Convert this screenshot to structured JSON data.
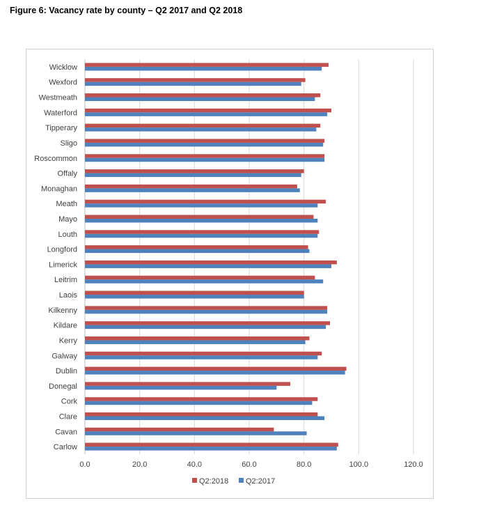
{
  "figure_title": "Figure 6: Vacancy rate by county – Q2 2017 and Q2 2018",
  "chart_data": {
    "type": "bar",
    "orientation": "horizontal",
    "categories": [
      "Wicklow",
      "Wexford",
      "Westmeath",
      "Waterford",
      "Tipperary",
      "Sligo",
      "Roscommon",
      "Offaly",
      "Monaghan",
      "Meath",
      "Mayo",
      "Louth",
      "Longford",
      "Limerick",
      "Leitrim",
      "Laois",
      "Kilkenny",
      "Kildare",
      "Kerry",
      "Galway",
      "Dublin",
      "Donegal",
      "Cork",
      "Clare",
      "Cavan",
      "Carlow"
    ],
    "series": [
      {
        "name": "Q2:2018",
        "color": "#c0504d",
        "values": [
          89.0,
          80.5,
          86.0,
          90.0,
          86.0,
          87.5,
          87.5,
          80.0,
          77.5,
          88.0,
          83.5,
          85.5,
          81.5,
          92.0,
          84.0,
          80.0,
          88.5,
          89.5,
          82.0,
          86.5,
          95.5,
          75.0,
          85.0,
          85.0,
          69.0,
          92.5
        ]
      },
      {
        "name": "Q2:2017",
        "color": "#4f81bd",
        "values": [
          86.5,
          79.0,
          84.0,
          88.5,
          84.5,
          87.0,
          87.5,
          79.0,
          78.5,
          85.0,
          85.0,
          85.0,
          82.0,
          90.0,
          87.0,
          80.0,
          88.5,
          88.0,
          80.5,
          85.0,
          95.0,
          70.0,
          83.0,
          87.5,
          81.0,
          92.0
        ]
      }
    ],
    "xlim": [
      0,
      120
    ],
    "xticks": [
      "0.0",
      "20.0",
      "40.0",
      "60.0",
      "80.0",
      "100.0",
      "120.0"
    ],
    "tick_values": [
      0,
      20,
      40,
      60,
      80,
      100,
      120
    ],
    "grid": true,
    "legend_position": "bottom",
    "legend": [
      "Q2:2018",
      "Q2:2017"
    ]
  }
}
